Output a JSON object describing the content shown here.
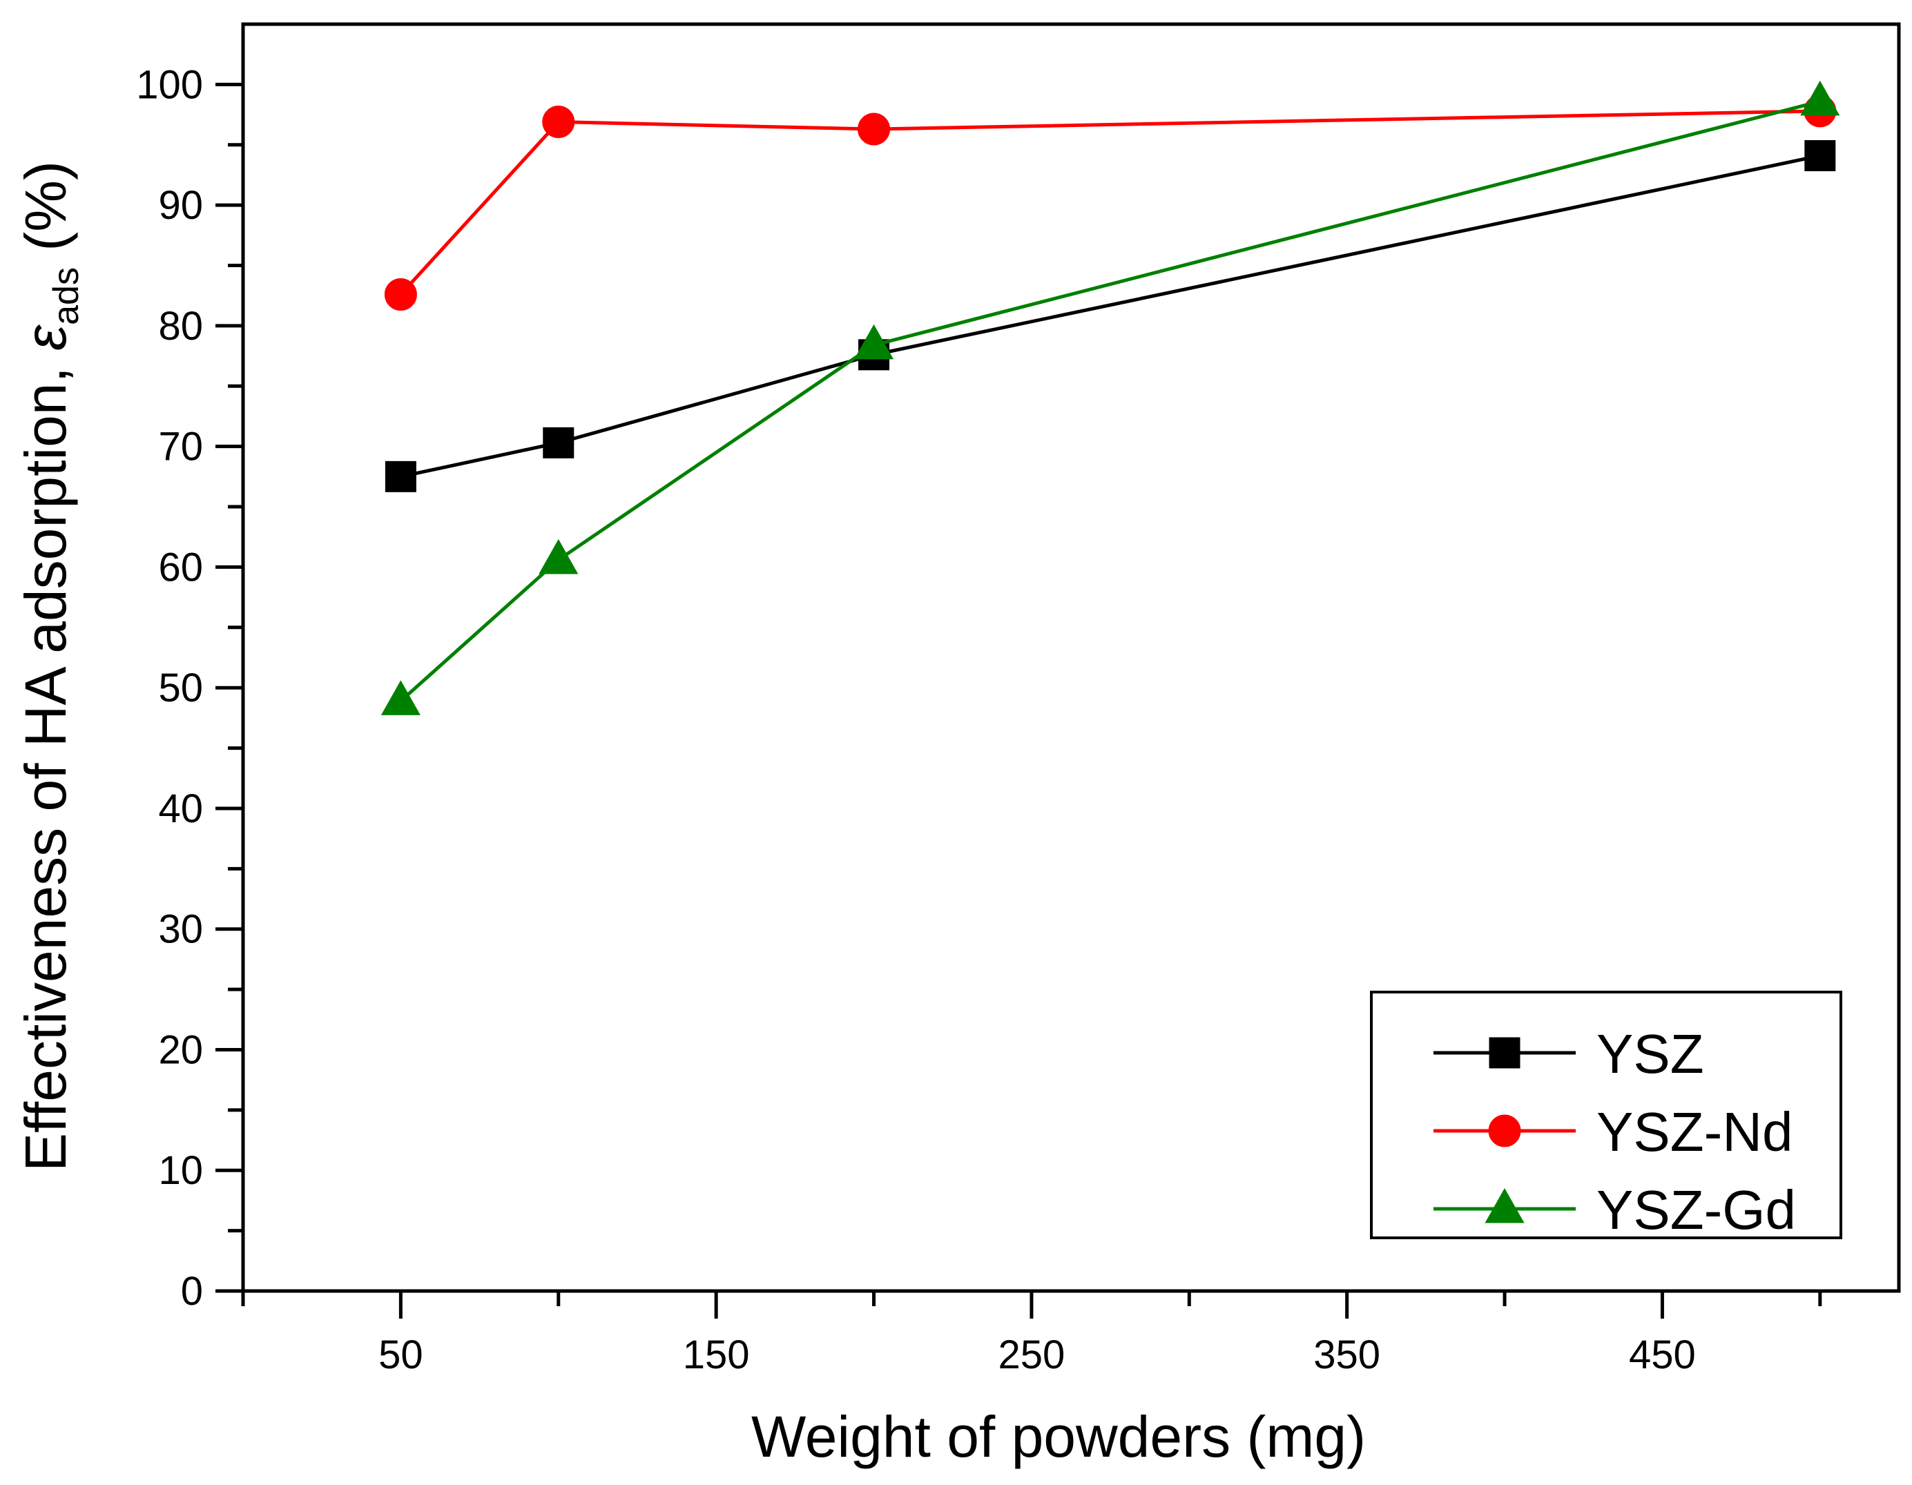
{
  "chart_data": {
    "type": "line",
    "xlabel": "Weight of powders (mg)",
    "ylabel": {
      "main": "Effectiveness of HA adsorption, ",
      "symbol": "ε",
      "subscript": "ads",
      "unit": " (%)"
    },
    "xlim": [
      0,
      525
    ],
    "ylim": [
      0,
      105
    ],
    "xticks": [
      50,
      150,
      250,
      350,
      450
    ],
    "xminor_ticks": [
      0,
      100,
      200,
      300,
      400,
      500
    ],
    "yticks": [
      0,
      10,
      20,
      30,
      40,
      50,
      60,
      70,
      80,
      90,
      100
    ],
    "legend_position": "bottom-right",
    "grid": false,
    "x": [
      50,
      100,
      200,
      500
    ],
    "series": [
      {
        "name": "YSZ",
        "values": [
          67.5,
          70.3,
          77.6,
          94.1
        ],
        "color": "#000000",
        "marker": "square"
      },
      {
        "name": "YSZ-Nd",
        "values": [
          82.6,
          96.9,
          96.3,
          97.8
        ],
        "color": "#ff0000",
        "marker": "circle"
      },
      {
        "name": "YSZ-Gd",
        "values": [
          48.9,
          60.6,
          78.4,
          98.6
        ],
        "color": "#008000",
        "marker": "triangle"
      }
    ]
  }
}
